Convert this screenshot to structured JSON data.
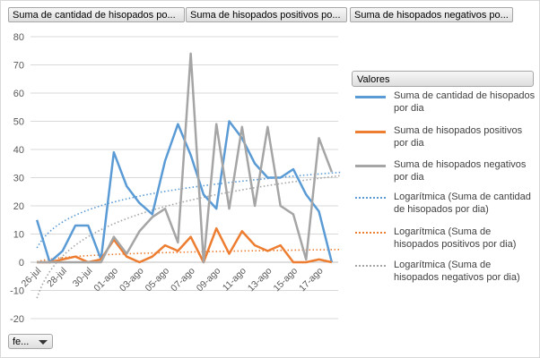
{
  "field_buttons": [
    "Suma de cantidad de hisopados po...",
    "Suma de hisopados positivos po...",
    "Suma de hisopados negativos po..."
  ],
  "filter_button": "fe...",
  "chart_data": {
    "type": "line",
    "legend_title": "Valores",
    "legend_position": "right",
    "grid": true,
    "ylim": [
      -20,
      80
    ],
    "y_ticks": [
      "-20",
      "-10",
      "0",
      "10",
      "20",
      "30",
      "40",
      "50",
      "60",
      "70",
      "80"
    ],
    "x_tick_labels": [
      "26-jul",
      "28-jul",
      "30-jul",
      "01-ago",
      "03-ago",
      "05-ago",
      "07-ago",
      "09-ago",
      "11-ago",
      "13-ago",
      "15-ago",
      "17-ago"
    ],
    "x": [
      "26-jul",
      "27-jul",
      "28-jul",
      "29-jul",
      "30-jul",
      "31-jul",
      "01-ago",
      "02-ago",
      "03-ago",
      "04-ago",
      "05-ago",
      "06-ago",
      "07-ago",
      "08-ago",
      "09-ago",
      "10-ago",
      "11-ago",
      "12-ago",
      "13-ago",
      "14-ago",
      "15-ago",
      "16-ago",
      "17-ago",
      "18-ago"
    ],
    "series": [
      {
        "name": "Suma de cantidad de hisopados por dia",
        "color": "#5b9bd5",
        "values": [
          15,
          0,
          4,
          13,
          13,
          1,
          39,
          27,
          21,
          17,
          36,
          49,
          38,
          24,
          19,
          50,
          44,
          35,
          30,
          30,
          33,
          24,
          18,
          0
        ]
      },
      {
        "name": "Suma de hisopados positivos por dia",
        "color": "#ed7d31",
        "values": [
          0,
          0,
          1,
          2,
          0,
          1,
          8,
          2,
          0,
          2,
          6,
          4,
          9,
          0,
          12,
          3,
          11,
          6,
          4,
          6,
          0,
          0,
          1,
          0
        ]
      },
      {
        "name": "Suma de hisopados negativos por dia",
        "color": "#a5a5a5",
        "values": [
          0,
          0,
          0,
          0,
          0,
          0,
          9,
          3,
          11,
          16,
          19,
          7,
          74,
          0,
          49,
          19,
          48,
          20,
          48,
          20,
          17,
          1,
          44,
          32
        ]
      },
      {
        "name": "Logarítmica (Suma de cantidad de hisopados por dia)",
        "color": "#5b9bd5",
        "trend_of": 0
      },
      {
        "name": "Logarítmica (Suma de hisopados positivos por dia)",
        "color": "#ed7d31",
        "trend_of": 1
      },
      {
        "name": "Logarítmica (Suma de hisopados negativos por dia)",
        "color": "#a5a5a5",
        "trend_of": 2
      }
    ]
  }
}
